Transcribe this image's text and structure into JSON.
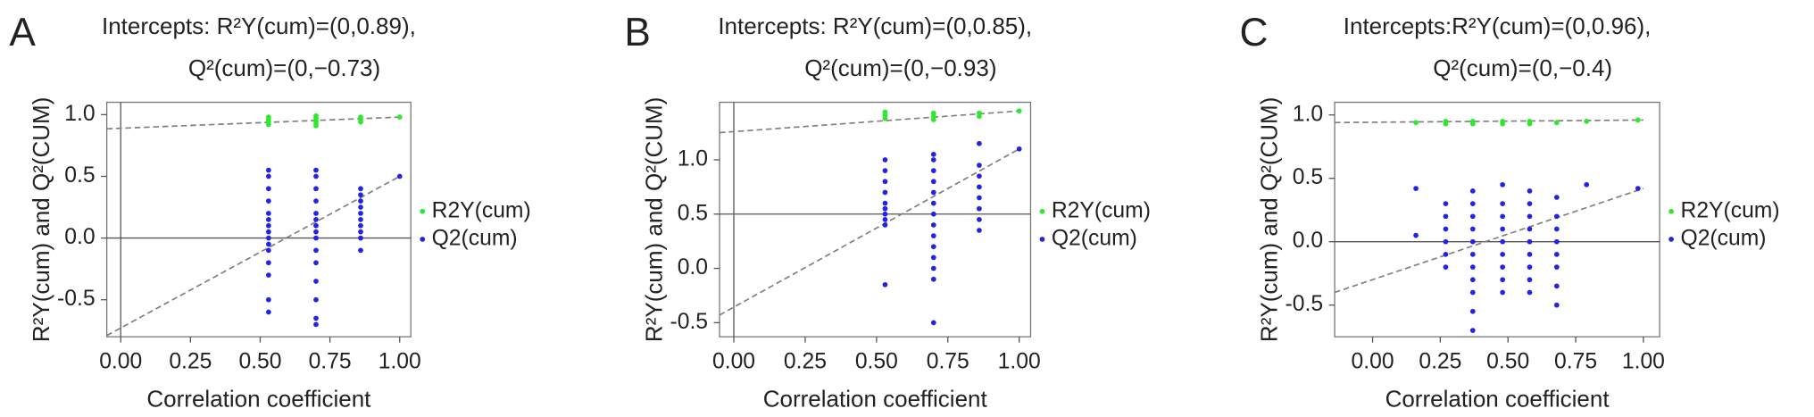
{
  "chart_data": [
    {
      "type": "scatter",
      "panel_label": "A",
      "title": "Intercepts: R²Y(cum)=(0,0.89),",
      "subtitle": "Q²(cum)=(0,−0.73)",
      "x_label": "Correlation coefficient",
      "y_label": "R²Y(cum) and Q²(CUM)",
      "xlim": [
        -0.05,
        1.04
      ],
      "ylim": [
        -0.8,
        1.1
      ],
      "xticks": [
        {
          "value": 0,
          "label": "0.00"
        },
        {
          "value": 0.25,
          "label": "0.25"
        },
        {
          "value": 0.5,
          "label": "0.50"
        },
        {
          "value": 0.75,
          "label": "0.75"
        },
        {
          "value": 1,
          "label": "1.00"
        }
      ],
      "yticks": [
        -0.5,
        {
          "value": 0,
          "label": "0.0"
        },
        0.5,
        {
          "value": 1,
          "label": "1.0"
        }
      ],
      "hline": 0,
      "vline": 0,
      "series": [
        {
          "name": "R2Y(cum)",
          "color": "#2ee82e",
          "x": [
            0.53,
            0.53,
            0.53,
            0.53,
            0.7,
            0.7,
            0.7,
            0.7,
            0.7,
            0.86,
            0.86,
            0.86,
            1.0
          ],
          "values": [
            0.92,
            0.94,
            0.96,
            0.98,
            0.91,
            0.93,
            0.95,
            0.97,
            0.99,
            0.94,
            0.96,
            0.98,
            0.98
          ]
        },
        {
          "name": "Q2(cum)",
          "color": "#2323e6",
          "x": [
            0.53,
            0.53,
            0.53,
            0.53,
            0.53,
            0.53,
            0.53,
            0.53,
            0.53,
            0.53,
            0.53,
            0.53,
            0.53,
            0.53,
            0.53,
            0.7,
            0.7,
            0.7,
            0.7,
            0.7,
            0.7,
            0.7,
            0.7,
            0.7,
            0.7,
            0.7,
            0.7,
            0.7,
            0.7,
            0.7,
            0.86,
            0.86,
            0.86,
            0.86,
            0.86,
            0.86,
            0.86,
            0.86,
            0.86,
            0.86,
            1.0
          ],
          "values": [
            -0.6,
            -0.5,
            -0.3,
            -0.2,
            -0.1,
            -0.05,
            0,
            0.05,
            0.1,
            0.15,
            0.2,
            0.3,
            0.4,
            0.5,
            0.55,
            -0.7,
            -0.65,
            -0.5,
            -0.35,
            -0.2,
            -0.1,
            0,
            0.05,
            0.1,
            0.15,
            0.2,
            0.3,
            0.4,
            0.5,
            0.55,
            -0.1,
            0,
            0.05,
            0.1,
            0.15,
            0.2,
            0.25,
            0.3,
            0.35,
            0.4,
            0.5
          ]
        }
      ],
      "fit_lines": [
        {
          "color": "#808080",
          "x": [
            -0.05,
            1.0
          ],
          "values": [
            0.885,
            0.98
          ]
        },
        {
          "color": "#808080",
          "x": [
            -0.05,
            1.0
          ],
          "values": [
            -0.79,
            0.5
          ]
        }
      ]
    },
    {
      "type": "scatter",
      "panel_label": "B",
      "title": "Intercepts: R²Y(cum)=(0,0.85),",
      "subtitle": "Q²(cum)=(0,−0.93)",
      "x_label": "Correlation coefficient",
      "y_label": "R²Y(cum) and Q²(CUM)",
      "xlim": [
        -0.05,
        1.04
      ],
      "ylim": [
        -0.63,
        1.53
      ],
      "xticks": [
        {
          "value": 0,
          "label": "0.00"
        },
        {
          "value": 0.25,
          "label": "0.25"
        },
        {
          "value": 0.5,
          "label": "0.50"
        },
        {
          "value": 0.75,
          "label": "0.75"
        },
        {
          "value": 1,
          "label": "1.00"
        }
      ],
      "yticks": [
        -0.5,
        {
          "value": 0,
          "label": "0.0"
        },
        0.5,
        {
          "value": 1,
          "label": "1.0"
        }
      ],
      "hline": 0.5,
      "vline": 0,
      "series": [
        {
          "name": "R2Y(cum)",
          "color": "#2ee82e",
          "x": [
            0.53,
            0.53,
            0.53,
            0.7,
            0.7,
            0.7,
            0.86,
            0.86,
            1.0
          ],
          "values": [
            1.38,
            1.41,
            1.44,
            1.37,
            1.4,
            1.43,
            1.4,
            1.43,
            1.45
          ]
        },
        {
          "name": "Q2(cum)",
          "color": "#2323e6",
          "x": [
            0.53,
            0.53,
            0.53,
            0.53,
            0.53,
            0.53,
            0.53,
            0.53,
            0.53,
            0.53,
            0.7,
            0.7,
            0.7,
            0.7,
            0.7,
            0.7,
            0.7,
            0.7,
            0.7,
            0.7,
            0.7,
            0.7,
            0.7,
            0.7,
            0.86,
            0.86,
            0.86,
            0.86,
            0.86,
            0.86,
            0.86,
            0.86,
            1.0
          ],
          "values": [
            -0.15,
            0.4,
            0.45,
            0.5,
            0.55,
            0.6,
            0.7,
            0.8,
            0.9,
            1.0,
            -0.5,
            -0.1,
            0,
            0.1,
            0.2,
            0.3,
            0.4,
            0.5,
            0.6,
            0.7,
            0.8,
            0.9,
            1.0,
            1.05,
            0.35,
            0.45,
            0.55,
            0.65,
            0.75,
            0.85,
            0.95,
            1.15,
            1.1
          ]
        }
      ],
      "fit_lines": [
        {
          "color": "#808080",
          "x": [
            -0.05,
            1.0
          ],
          "values": [
            1.25,
            1.45
          ]
        },
        {
          "color": "#808080",
          "x": [
            -0.05,
            1.0
          ],
          "values": [
            -0.43,
            1.1
          ]
        }
      ]
    },
    {
      "type": "scatter",
      "panel_label": "C",
      "title": "Intercepts:R²Y(cum)=(0,0.96),",
      "subtitle": "Q²(cum)=(0,−0.4)",
      "x_label": "Correlation coefficient",
      "y_label": "R²Y(cum) and Q²(CUM)",
      "xlim": [
        -0.14,
        1.06
      ],
      "ylim": [
        -0.75,
        1.1
      ],
      "xticks": [
        {
          "value": 0,
          "label": "0.00"
        },
        {
          "value": 0.25,
          "label": "0.25"
        },
        {
          "value": 0.5,
          "label": "0.50"
        },
        {
          "value": 0.75,
          "label": "0.75"
        },
        {
          "value": 1,
          "label": "1.00"
        }
      ],
      "yticks": [
        -0.5,
        {
          "value": 0,
          "label": "0.0"
        },
        0.5,
        {
          "value": 1,
          "label": "1.0"
        }
      ],
      "hline": 0,
      "series": [
        {
          "name": "R2Y(cum)",
          "color": "#2ee82e",
          "x": [
            0.16,
            0.27,
            0.27,
            0.37,
            0.37,
            0.48,
            0.48,
            0.58,
            0.58,
            0.68,
            0.79,
            0.98
          ],
          "values": [
            0.94,
            0.93,
            0.95,
            0.93,
            0.95,
            0.93,
            0.95,
            0.93,
            0.95,
            0.94,
            0.95,
            0.96
          ]
        },
        {
          "name": "Q2(cum)",
          "color": "#2323e6",
          "x": [
            0.16,
            0.16,
            0.27,
            0.27,
            0.27,
            0.27,
            0.27,
            0.27,
            0.37,
            0.37,
            0.37,
            0.37,
            0.37,
            0.37,
            0.37,
            0.37,
            0.37,
            0.37,
            0.37,
            0.48,
            0.48,
            0.48,
            0.48,
            0.48,
            0.48,
            0.48,
            0.48,
            0.48,
            0.58,
            0.58,
            0.58,
            0.58,
            0.58,
            0.58,
            0.58,
            0.58,
            0.58,
            0.68,
            0.68,
            0.68,
            0.68,
            0.68,
            0.68,
            0.68,
            0.68,
            0.79,
            0.98
          ],
          "values": [
            0.05,
            0.42,
            -0.2,
            -0.1,
            0,
            0.1,
            0.2,
            0.3,
            -0.7,
            -0.55,
            -0.4,
            -0.3,
            -0.2,
            -0.1,
            0,
            0.1,
            0.2,
            0.3,
            0.4,
            -0.4,
            -0.3,
            -0.2,
            -0.1,
            0,
            0.1,
            0.2,
            0.3,
            0.45,
            -0.4,
            -0.3,
            -0.2,
            -0.1,
            0,
            0.1,
            0.2,
            0.3,
            0.4,
            -0.5,
            -0.35,
            -0.2,
            -0.1,
            0,
            0.1,
            0.2,
            0.35,
            0.45,
            0.42
          ]
        }
      ],
      "fit_lines": [
        {
          "color": "#808080",
          "x": [
            -0.14,
            1.0
          ],
          "values": [
            0.94,
            0.96
          ]
        },
        {
          "color": "#808080",
          "x": [
            -0.14,
            1.0
          ],
          "values": [
            -0.4,
            0.42
          ]
        }
      ]
    }
  ]
}
